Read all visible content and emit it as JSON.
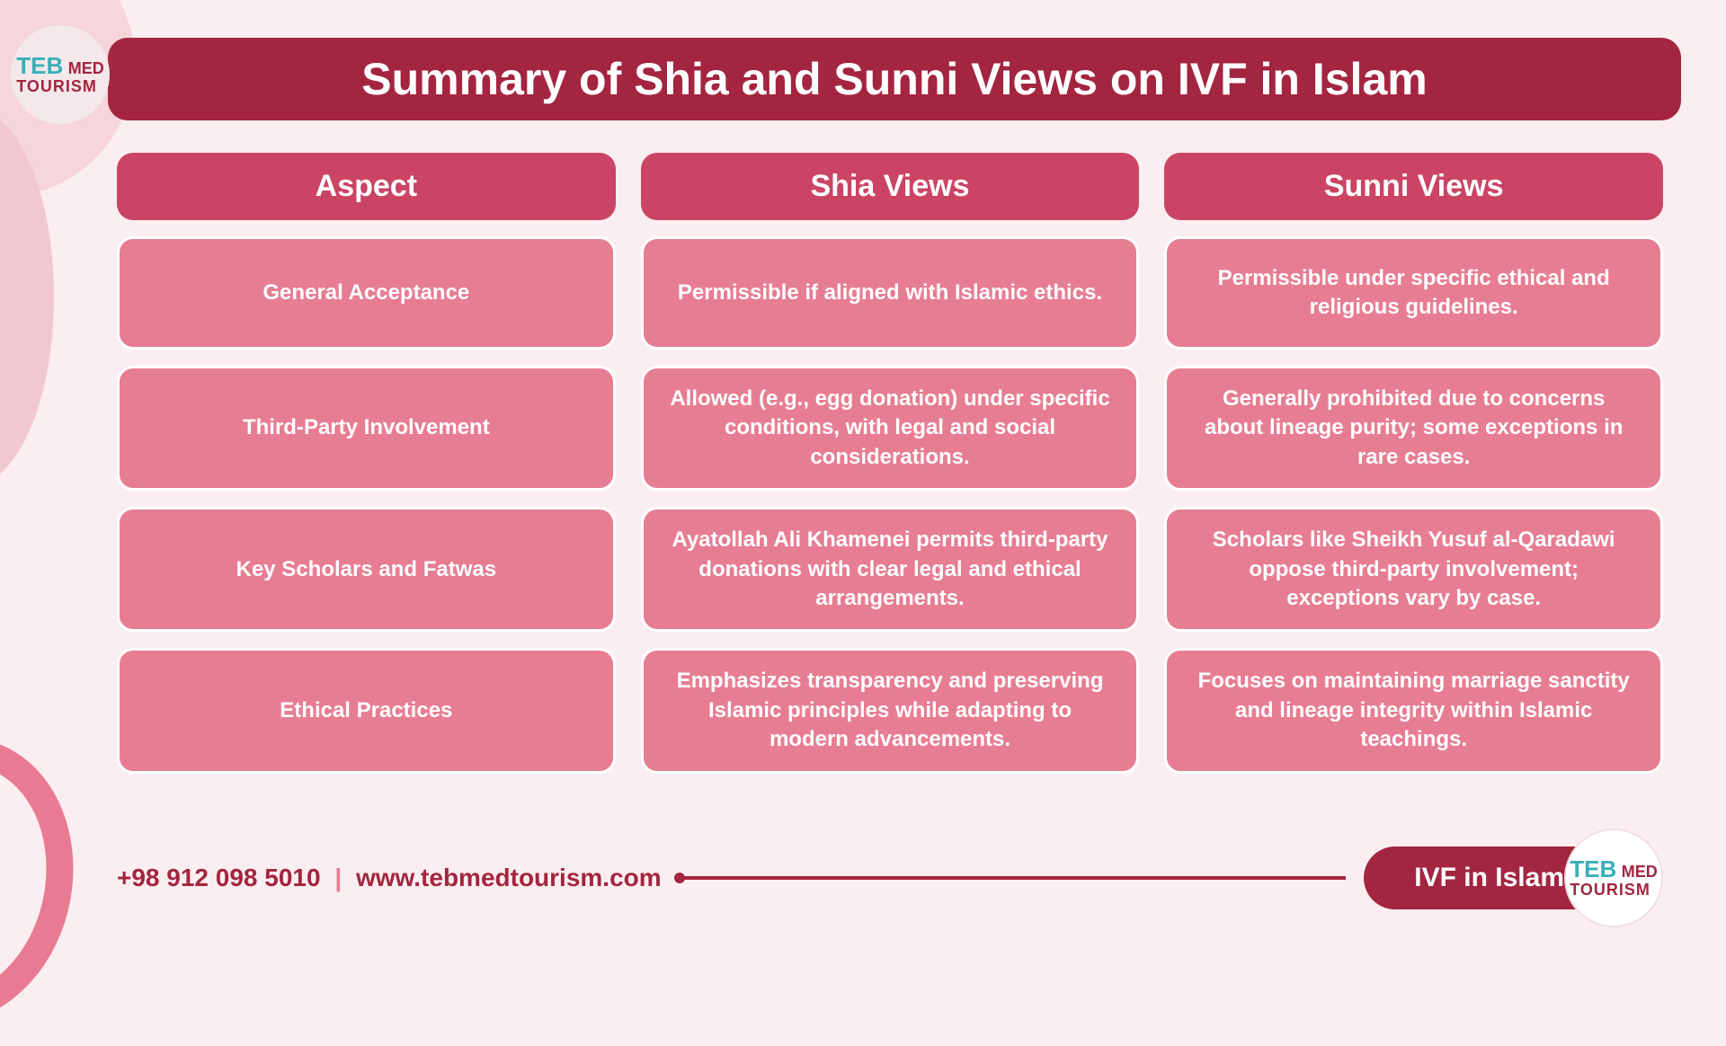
{
  "title": "Summary of Shia and Sunni Views on IVF in Islam",
  "logo": {
    "line1": "TEB",
    "line2": "MED",
    "line3": "TOURISM"
  },
  "columns": [
    "Aspect",
    "Shia Views",
    "Sunni Views"
  ],
  "rows": [
    {
      "aspect": "General Acceptance",
      "shia": "Permissible if aligned with Islamic ethics.",
      "sunni": "Permissible under specific ethical and religious guidelines."
    },
    {
      "aspect": "Third-Party Involvement",
      "shia": "Allowed (e.g., egg donation) under specific conditions, with legal and social considerations.",
      "sunni": "Generally prohibited due to concerns about lineage purity; some exceptions in rare cases."
    },
    {
      "aspect": "Key Scholars and Fatwas",
      "shia": "Ayatollah Ali Khamenei permits third-party donations with clear legal and ethical arrangements.",
      "sunni": "Scholars like Sheikh Yusuf al-Qaradawi oppose third-party involvement; exceptions vary by case."
    },
    {
      "aspect": "Ethical Practices",
      "shia": "Emphasizes transparency and preserving Islamic principles while adapting to modern advancements.",
      "sunni": "Focuses on maintaining marriage sanctity and lineage integrity within Islamic teachings."
    }
  ],
  "footer": {
    "phone": "+98 912 098 5010",
    "website": "www.tebmedtourism.com",
    "badge": "IVF in Islam"
  },
  "colors": {
    "background": "#fbeef0",
    "title_bar": "#a32540",
    "header_cell": "#cb4465",
    "body_cell": "#e77d93",
    "text_white": "#ffffff",
    "accent_teal": "#39b0b8"
  },
  "typography": {
    "title_fontsize": 50,
    "header_fontsize": 34,
    "body_fontsize": 24,
    "footer_fontsize": 28
  },
  "layout": {
    "type": "table",
    "columns": 3,
    "rows": 4,
    "cell_radius": 18,
    "gap": 28
  }
}
